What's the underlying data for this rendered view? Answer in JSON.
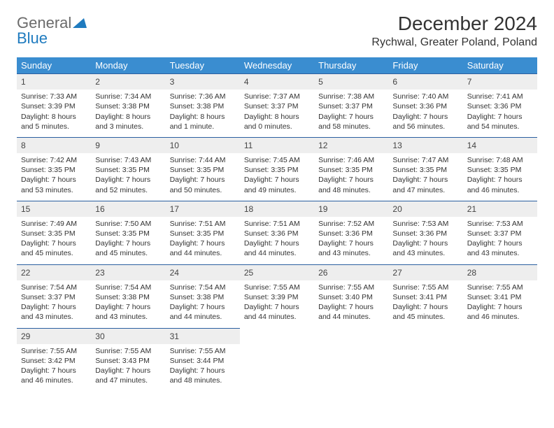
{
  "logo": {
    "general": "General",
    "blue": "Blue"
  },
  "title": "December 2024",
  "location": "Rychwal, Greater Poland, Poland",
  "colors": {
    "header_bg": "#3a8dd0",
    "header_text": "#ffffff",
    "daynum_bg": "#eeeeee",
    "row_border": "#2a5fa0",
    "logo_gray": "#6b6b6b",
    "logo_blue": "#1f7bbf",
    "page_bg": "#ffffff"
  },
  "day_names": [
    "Sunday",
    "Monday",
    "Tuesday",
    "Wednesday",
    "Thursday",
    "Friday",
    "Saturday"
  ],
  "weeks": [
    [
      {
        "n": "1",
        "sr": "7:33 AM",
        "ss": "3:39 PM",
        "dl": "8 hours and 5 minutes."
      },
      {
        "n": "2",
        "sr": "7:34 AM",
        "ss": "3:38 PM",
        "dl": "8 hours and 3 minutes."
      },
      {
        "n": "3",
        "sr": "7:36 AM",
        "ss": "3:38 PM",
        "dl": "8 hours and 1 minute."
      },
      {
        "n": "4",
        "sr": "7:37 AM",
        "ss": "3:37 PM",
        "dl": "8 hours and 0 minutes."
      },
      {
        "n": "5",
        "sr": "7:38 AM",
        "ss": "3:37 PM",
        "dl": "7 hours and 58 minutes."
      },
      {
        "n": "6",
        "sr": "7:40 AM",
        "ss": "3:36 PM",
        "dl": "7 hours and 56 minutes."
      },
      {
        "n": "7",
        "sr": "7:41 AM",
        "ss": "3:36 PM",
        "dl": "7 hours and 54 minutes."
      }
    ],
    [
      {
        "n": "8",
        "sr": "7:42 AM",
        "ss": "3:35 PM",
        "dl": "7 hours and 53 minutes."
      },
      {
        "n": "9",
        "sr": "7:43 AM",
        "ss": "3:35 PM",
        "dl": "7 hours and 52 minutes."
      },
      {
        "n": "10",
        "sr": "7:44 AM",
        "ss": "3:35 PM",
        "dl": "7 hours and 50 minutes."
      },
      {
        "n": "11",
        "sr": "7:45 AM",
        "ss": "3:35 PM",
        "dl": "7 hours and 49 minutes."
      },
      {
        "n": "12",
        "sr": "7:46 AM",
        "ss": "3:35 PM",
        "dl": "7 hours and 48 minutes."
      },
      {
        "n": "13",
        "sr": "7:47 AM",
        "ss": "3:35 PM",
        "dl": "7 hours and 47 minutes."
      },
      {
        "n": "14",
        "sr": "7:48 AM",
        "ss": "3:35 PM",
        "dl": "7 hours and 46 minutes."
      }
    ],
    [
      {
        "n": "15",
        "sr": "7:49 AM",
        "ss": "3:35 PM",
        "dl": "7 hours and 45 minutes."
      },
      {
        "n": "16",
        "sr": "7:50 AM",
        "ss": "3:35 PM",
        "dl": "7 hours and 45 minutes."
      },
      {
        "n": "17",
        "sr": "7:51 AM",
        "ss": "3:35 PM",
        "dl": "7 hours and 44 minutes."
      },
      {
        "n": "18",
        "sr": "7:51 AM",
        "ss": "3:36 PM",
        "dl": "7 hours and 44 minutes."
      },
      {
        "n": "19",
        "sr": "7:52 AM",
        "ss": "3:36 PM",
        "dl": "7 hours and 43 minutes."
      },
      {
        "n": "20",
        "sr": "7:53 AM",
        "ss": "3:36 PM",
        "dl": "7 hours and 43 minutes."
      },
      {
        "n": "21",
        "sr": "7:53 AM",
        "ss": "3:37 PM",
        "dl": "7 hours and 43 minutes."
      }
    ],
    [
      {
        "n": "22",
        "sr": "7:54 AM",
        "ss": "3:37 PM",
        "dl": "7 hours and 43 minutes."
      },
      {
        "n": "23",
        "sr": "7:54 AM",
        "ss": "3:38 PM",
        "dl": "7 hours and 43 minutes."
      },
      {
        "n": "24",
        "sr": "7:54 AM",
        "ss": "3:38 PM",
        "dl": "7 hours and 44 minutes."
      },
      {
        "n": "25",
        "sr": "7:55 AM",
        "ss": "3:39 PM",
        "dl": "7 hours and 44 minutes."
      },
      {
        "n": "26",
        "sr": "7:55 AM",
        "ss": "3:40 PM",
        "dl": "7 hours and 44 minutes."
      },
      {
        "n": "27",
        "sr": "7:55 AM",
        "ss": "3:41 PM",
        "dl": "7 hours and 45 minutes."
      },
      {
        "n": "28",
        "sr": "7:55 AM",
        "ss": "3:41 PM",
        "dl": "7 hours and 46 minutes."
      }
    ],
    [
      {
        "n": "29",
        "sr": "7:55 AM",
        "ss": "3:42 PM",
        "dl": "7 hours and 46 minutes."
      },
      {
        "n": "30",
        "sr": "7:55 AM",
        "ss": "3:43 PM",
        "dl": "7 hours and 47 minutes."
      },
      {
        "n": "31",
        "sr": "7:55 AM",
        "ss": "3:44 PM",
        "dl": "7 hours and 48 minutes."
      },
      null,
      null,
      null,
      null
    ]
  ],
  "labels": {
    "sunrise": "Sunrise: ",
    "sunset": "Sunset: ",
    "daylight": "Daylight: "
  }
}
